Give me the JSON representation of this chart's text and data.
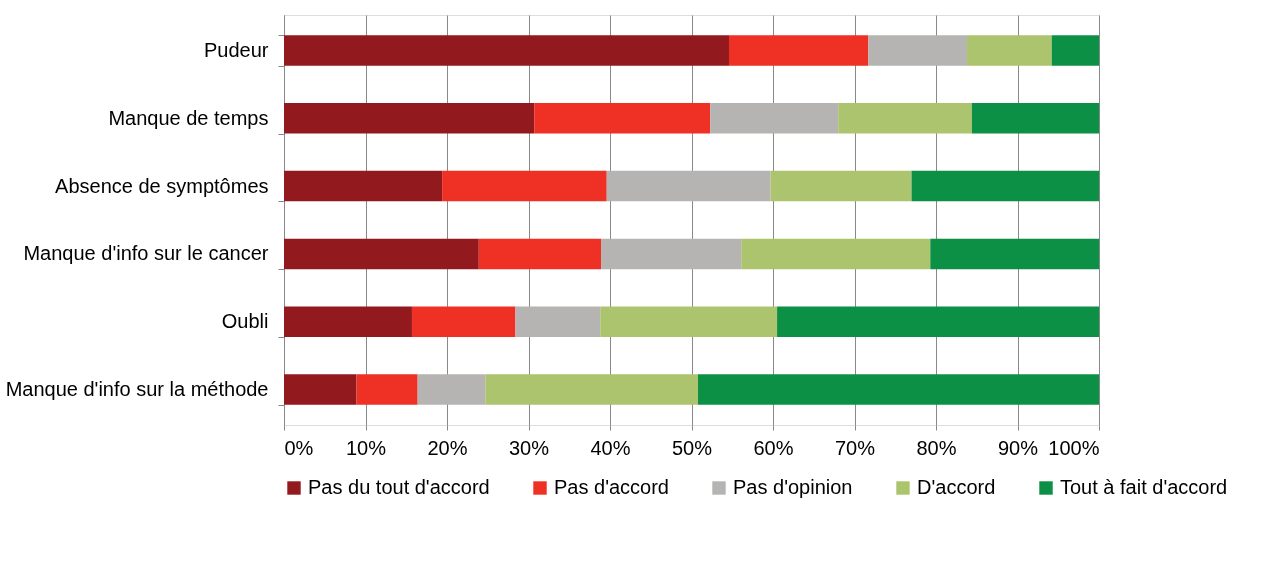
{
  "chart_data": {
    "type": "bar",
    "orientation": "horizontal",
    "stacked": true,
    "categories": [
      "Pudeur",
      "Manque de temps",
      "Absence de symptômes",
      "Manque d'info sur le cancer",
      "Oubli",
      "Manque d'info sur la méthode"
    ],
    "series": [
      {
        "name": "Pas du tout d'accord",
        "color": "#921a1e",
        "values": [
          54.6,
          30.7,
          19.4,
          23.9,
          15.7,
          8.9
        ]
      },
      {
        "name": "Pas d'accord",
        "color": "#ee3124",
        "values": [
          17.1,
          21.6,
          20.2,
          15.0,
          12.7,
          7.5
        ]
      },
      {
        "name": "Pas d'opinion",
        "color": "#b5b4b2",
        "values": [
          12.1,
          15.7,
          20.1,
          17.2,
          10.4,
          8.3
        ]
      },
      {
        "name": "D'accord",
        "color": "#adc46e",
        "values": [
          10.4,
          16.4,
          17.3,
          23.2,
          21.7,
          26.1
        ]
      },
      {
        "name": "Tout à fait d'accord",
        "color": "#0c9046",
        "values": [
          5.8,
          15.6,
          23.0,
          20.7,
          39.5,
          49.2
        ]
      }
    ],
    "xlim": [
      0,
      100
    ],
    "xticks": [
      {
        "value": 0,
        "label": "0%"
      },
      {
        "value": 10,
        "label": "10%"
      },
      {
        "value": 20,
        "label": "20%"
      },
      {
        "value": 30,
        "label": "30%"
      },
      {
        "value": 40,
        "label": "40%"
      },
      {
        "value": 50,
        "label": "50%"
      },
      {
        "value": 60,
        "label": "60%"
      },
      {
        "value": 70,
        "label": "70%"
      },
      {
        "value": 80,
        "label": "80%"
      },
      {
        "value": 90,
        "label": "90%"
      },
      {
        "value": 100,
        "label": "100%"
      }
    ],
    "grid": "x",
    "legend": "bottom"
  }
}
